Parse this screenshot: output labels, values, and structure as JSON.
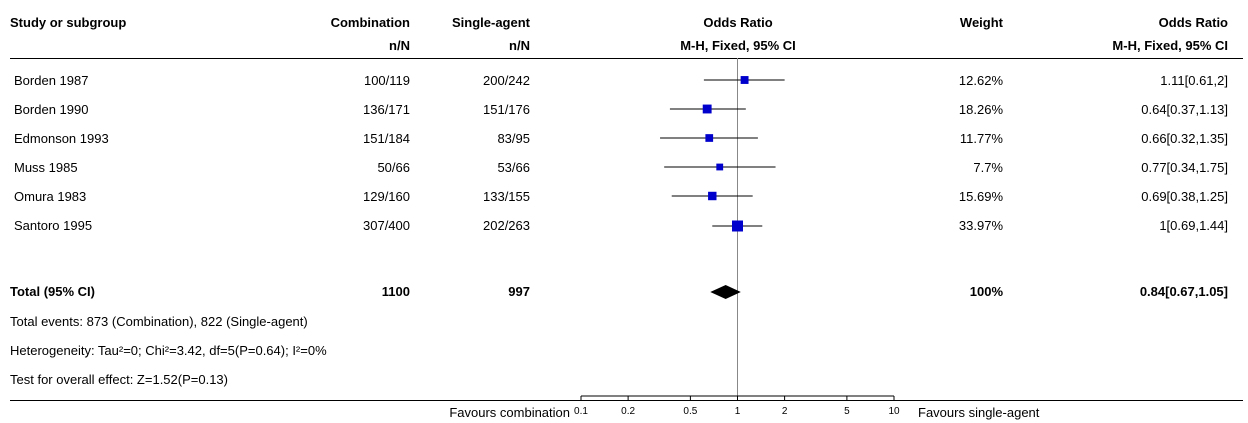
{
  "header": {
    "study": "Study or subgroup",
    "group1": "Combination",
    "group2": "Single-agent",
    "or_title": "Odds Ratio",
    "weight": "Weight",
    "or_title_right": "Odds Ratio",
    "sub_group1": "n/N",
    "sub_group2": "n/N",
    "sub_or": "M-H, Fixed, 95% CI",
    "sub_or_right": "M-H, Fixed, 95% CI"
  },
  "studies": [
    {
      "name": "Borden 1987",
      "g1": "100/119",
      "g2": "200/242",
      "weight": "12.62%",
      "ci_text": "1.11[0.61,2]"
    },
    {
      "name": "Borden 1990",
      "g1": "136/171",
      "g2": "151/176",
      "weight": "18.26%",
      "ci_text": "0.64[0.37,1.13]"
    },
    {
      "name": "Edmonson 1993",
      "g1": "151/184",
      "g2": "83/95",
      "weight": "11.77%",
      "ci_text": "0.66[0.32,1.35]"
    },
    {
      "name": "Muss 1985",
      "g1": "50/66",
      "g2": "53/66",
      "weight": "7.7%",
      "ci_text": "0.77[0.34,1.75]"
    },
    {
      "name": "Omura 1983",
      "g1": "129/160",
      "g2": "133/155",
      "weight": "15.69%",
      "ci_text": "0.69[0.38,1.25]"
    },
    {
      "name": "Santoro 1995",
      "g1": "307/400",
      "g2": "202/263",
      "weight": "33.97%",
      "ci_text": "1[0.69,1.44]"
    }
  ],
  "total": {
    "label": "Total (95% CI)",
    "g1": "1100",
    "g2": "997",
    "weight": "100%",
    "ci_text": "0.84[0.67,1.05]"
  },
  "footer": {
    "events": "Total events: 873 (Combination), 822 (Single-agent)",
    "heterogeneity": "Heterogeneity: Tau²=0; Chi²=3.42, df=5(P=0.64); I²=0%",
    "overall": "Test for overall effect: Z=1.52(P=0.13)"
  },
  "axis": {
    "left_label": "Favours combination",
    "right_label": "Favours single-agent"
  },
  "chart_data": {
    "type": "forest",
    "scale": "log",
    "xlim": [
      0.1,
      10
    ],
    "ticks": [
      {
        "value": 0.1,
        "label": "0.1"
      },
      {
        "value": 0.2,
        "label": "0.2"
      },
      {
        "value": 0.5,
        "label": "0.5"
      },
      {
        "value": 1,
        "label": "1"
      },
      {
        "value": 2,
        "label": "2"
      },
      {
        "value": 5,
        "label": "5"
      },
      {
        "value": 10,
        "label": "10"
      }
    ],
    "studies": [
      {
        "name": "Borden 1987",
        "or": 1.11,
        "lo": 0.61,
        "hi": 2,
        "weight": 12.62
      },
      {
        "name": "Borden 1990",
        "or": 0.64,
        "lo": 0.37,
        "hi": 1.13,
        "weight": 18.26
      },
      {
        "name": "Edmonson 1993",
        "or": 0.66,
        "lo": 0.32,
        "hi": 1.35,
        "weight": 11.77
      },
      {
        "name": "Muss 1985",
        "or": 0.77,
        "lo": 0.34,
        "hi": 1.75,
        "weight": 7.7
      },
      {
        "name": "Omura 1983",
        "or": 0.69,
        "lo": 0.38,
        "hi": 1.25,
        "weight": 15.69
      },
      {
        "name": "Santoro 1995",
        "or": 1,
        "lo": 0.69,
        "hi": 1.44,
        "weight": 33.97
      }
    ],
    "pooled": {
      "or": 0.84,
      "lo": 0.67,
      "hi": 1.05
    },
    "colors": {
      "marker": "#0000cc",
      "line": "#000000",
      "diamond": "#000000"
    }
  }
}
